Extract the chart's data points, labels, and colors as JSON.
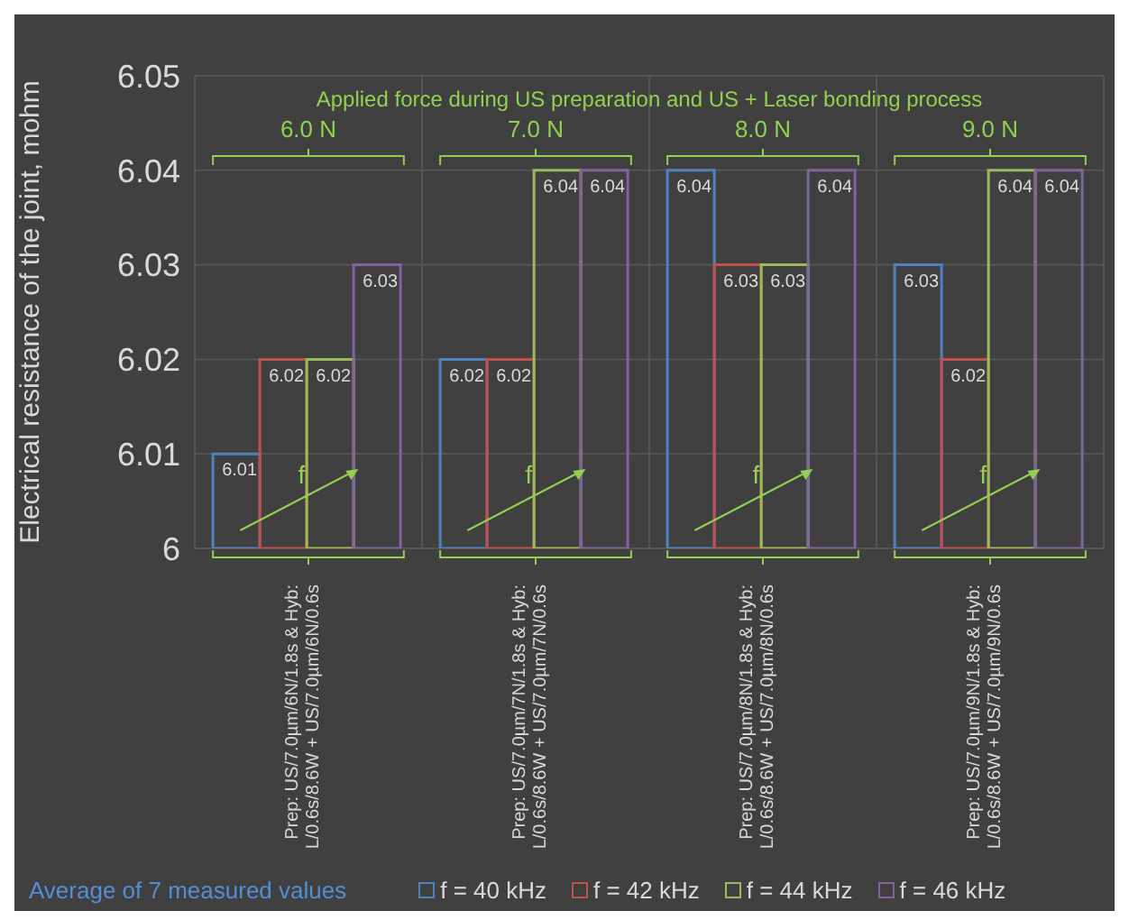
{
  "chart_data": {
    "type": "bar",
    "ylabel": "Electrical resistance of the joint, mohm",
    "categories": [
      "Prep: US/7.0µm/6N/1.8s & Hyb: L/0.6s/8.6W + US/7.0µm/6N/0.6s",
      "Prep: US/7.0µm/7N/1.8s & Hyb: L/0.6s/8.6W + US/7.0µm/7N/0.6s",
      "Prep: US/7.0µm/8N/1.8s & Hyb: L/0.6s/8.6W + US/7.0µm/8N/0.6s",
      "Prep: US/7.0µm/9N/1.8s & Hyb: L/0.6s/8.6W + US/7.0µm/9N/0.6s"
    ],
    "series": [
      {
        "name": "f = 40 kHz",
        "color": "#4f81bd",
        "values": [
          6.01,
          6.02,
          6.04,
          6.03
        ]
      },
      {
        "name": "f = 42 kHz",
        "color": "#c0504d",
        "values": [
          6.02,
          6.02,
          6.03,
          6.02
        ]
      },
      {
        "name": "f = 44 kHz",
        "color": "#9bbb59",
        "values": [
          6.02,
          6.04,
          6.03,
          6.04
        ]
      },
      {
        "name": "f = 46 kHz",
        "color": "#8064a2",
        "values": [
          6.03,
          6.04,
          6.04,
          6.04
        ]
      }
    ],
    "ylim": [
      6,
      6.05
    ],
    "yticks": [
      {
        "value": 6,
        "label": "6"
      },
      6.01,
      6.02,
      6.03,
      6.04,
      6.05
    ],
    "grid": true,
    "legend": "bottom",
    "data_labels": true,
    "annotations": [
      "Applied  force during  US  preparation  and  US + Laser bonding  process",
      "6.0 N",
      "7.0 N",
      "8.0 N",
      "9.0 N",
      "f",
      "f",
      "f",
      "f",
      "Average of  7 measured values"
    ]
  }
}
